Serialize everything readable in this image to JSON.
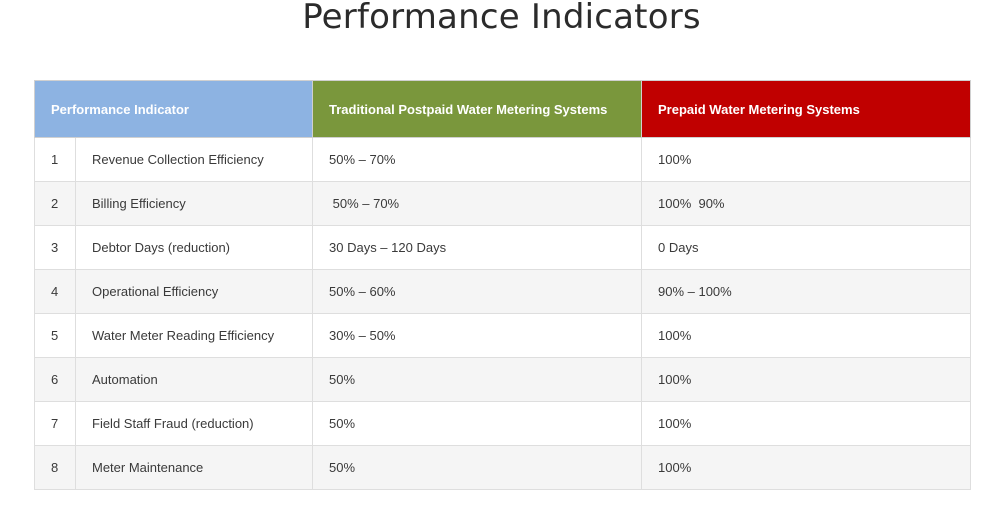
{
  "page": {
    "title": "Performance Indicators"
  },
  "table": {
    "headers": {
      "indicator": "Performance Indicator",
      "postpaid": "Traditional Postpaid Water Metering Systems",
      "prepaid": "Prepaid Water Metering Systems"
    },
    "header_colors": {
      "indicator": "#8db3e2",
      "postpaid": "#7a973c",
      "prepaid": "#c00000"
    },
    "rows": [
      {
        "num": "1",
        "indicator": "Revenue Collection Efficiency",
        "postpaid": "50% – 70%",
        "prepaid": "100%"
      },
      {
        "num": "2",
        "indicator": "Billing Efficiency",
        "postpaid": " 50% – 70%",
        "prepaid": "100%  90%"
      },
      {
        "num": "3",
        "indicator": "Debtor Days (reduction)",
        "postpaid": "30 Days – 120 Days",
        "prepaid": "0 Days"
      },
      {
        "num": "4",
        "indicator": "Operational Efficiency",
        "postpaid": "50% – 60%",
        "prepaid": "90% – 100%"
      },
      {
        "num": "5",
        "indicator": "Water Meter Reading Efficiency",
        "postpaid": "30% – 50%",
        "prepaid": "100%"
      },
      {
        "num": "6",
        "indicator": "Automation",
        "postpaid": "50%",
        "prepaid": "100%"
      },
      {
        "num": "7",
        "indicator": "Field Staff Fraud (reduction)",
        "postpaid": "50%",
        "prepaid": "100%"
      },
      {
        "num": "8",
        "indicator": "Meter Maintenance",
        "postpaid": "50%",
        "prepaid": "100%"
      }
    ]
  }
}
